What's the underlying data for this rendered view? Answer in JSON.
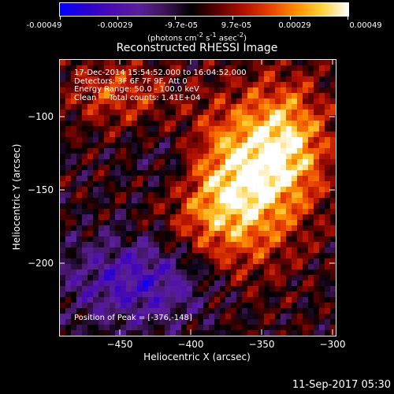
{
  "colorbar": {
    "ticks": [
      "-0.00049",
      "-0.00029",
      "-9.7e-05",
      "9.7e-05",
      "0.00029",
      "0.00049"
    ],
    "units_html": "(photons cm<sup>-2</sup> s<sup>-1</sup> asec<sup>-2</sup>)",
    "units_text": "(photons cm-2 s-1 asec-2)"
  },
  "image": {
    "title": "Reconstructed RHESSI Image",
    "info_lines": [
      "17-Dec-2014 15:54:52.000 to 16:04:52.000",
      "Detectors: 3F 6F 7F 9F, Att 0",
      "Energy Range: 50.0 - 100.0 keV",
      "Clean     Total counts: 1.41E+04"
    ],
    "peak_label": "Position of Peak = [-376,-148]",
    "peak": {
      "x": -376,
      "y": -148
    }
  },
  "axes": {
    "xlabel": "Heliocentric X (arcsec)",
    "ylabel": "Heliocentric Y (arcsec)",
    "xticks": [
      -450,
      -400,
      -350,
      -300
    ],
    "xtick_labels": [
      "−450",
      "−400",
      "−350",
      "−300"
    ],
    "yticks": [
      -100,
      -150,
      -200
    ],
    "ytick_labels": [
      "−100",
      "−150",
      "−200"
    ],
    "xlim": [
      -494,
      -300
    ],
    "ylim": [
      -250,
      -62
    ]
  },
  "footer": {
    "timestamp": "11-Sep-2017 05:30"
  },
  "colormap": [
    "#0000ff",
    "#2a00d0",
    "#4a0bb0",
    "#5a1f9a",
    "#3d1456",
    "#000000",
    "#5a0000",
    "#b01000",
    "#e84000",
    "#ff8c00",
    "#ffd23a",
    "#ffffff"
  ]
}
